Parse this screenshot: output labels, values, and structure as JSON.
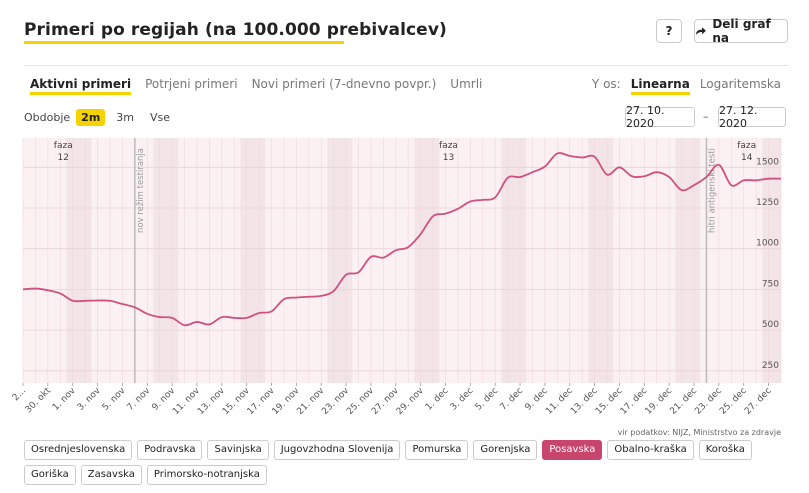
{
  "header": {
    "title": "Primeri po regijah (na 100.000 prebivalcev)",
    "help_label": "?",
    "share_label": "Deli graf na",
    "share_icon": "share-arrow-icon"
  },
  "tabs": [
    {
      "label": "Aktivni primeri",
      "active": true
    },
    {
      "label": "Potrjeni primeri",
      "active": false
    },
    {
      "label": "Novi primeri (7-dnevno povpr.)",
      "active": false
    },
    {
      "label": "Umrli",
      "active": false
    }
  ],
  "yaxis_control": {
    "label": "Y os:",
    "options": [
      "Linearna",
      "Logaritemska"
    ],
    "selected": "Linearna"
  },
  "period": {
    "label": "Obdobje",
    "options": [
      "2m",
      "3m",
      "Vse"
    ],
    "selected": "2m"
  },
  "date_range": {
    "from": "27. 10. 2020",
    "separator": "–",
    "to": "27. 12. 2020"
  },
  "source": "vir podatkov: NIJZ, Ministrstvo za zdravje",
  "regions": [
    {
      "label": "Osrednjeslovenska",
      "active": false
    },
    {
      "label": "Podravska",
      "active": false
    },
    {
      "label": "Savinjska",
      "active": false
    },
    {
      "label": "Jugovzhodna Slovenija",
      "active": false
    },
    {
      "label": "Pomurska",
      "active": false
    },
    {
      "label": "Gorenjska",
      "active": false
    },
    {
      "label": "Posavska",
      "active": true
    },
    {
      "label": "Obalno-kraška",
      "active": false
    },
    {
      "label": "Koroška",
      "active": false
    },
    {
      "label": "Goriška",
      "active": false
    },
    {
      "label": "Zasavska",
      "active": false
    },
    {
      "label": "Primorsko-notranjska",
      "active": false
    }
  ],
  "chart_data": {
    "type": "line",
    "series": [
      {
        "name": "Posavska",
        "color": "#d0507f",
        "x": [
          "2020-10-27",
          "2020-10-28",
          "2020-10-29",
          "2020-10-30",
          "2020-10-31",
          "2020-11-01",
          "2020-11-02",
          "2020-11-03",
          "2020-11-04",
          "2020-11-05",
          "2020-11-06",
          "2020-11-07",
          "2020-11-08",
          "2020-11-09",
          "2020-11-10",
          "2020-11-11",
          "2020-11-12",
          "2020-11-13",
          "2020-11-14",
          "2020-11-15",
          "2020-11-16",
          "2020-11-17",
          "2020-11-18",
          "2020-11-19",
          "2020-11-20",
          "2020-11-21",
          "2020-11-22",
          "2020-11-23",
          "2020-11-24",
          "2020-11-25",
          "2020-11-26",
          "2020-11-27",
          "2020-11-28",
          "2020-11-29",
          "2020-11-30",
          "2020-12-01",
          "2020-12-02",
          "2020-12-03",
          "2020-12-04",
          "2020-12-05",
          "2020-12-06",
          "2020-12-07",
          "2020-12-08",
          "2020-12-09",
          "2020-12-10",
          "2020-12-11",
          "2020-12-12",
          "2020-12-13",
          "2020-12-14",
          "2020-12-15",
          "2020-12-16",
          "2020-12-17",
          "2020-12-18",
          "2020-12-19",
          "2020-12-20",
          "2020-12-21",
          "2020-12-22",
          "2020-12-23",
          "2020-12-24",
          "2020-12-25",
          "2020-12-26",
          "2020-12-27"
        ],
        "values": [
          750,
          755,
          745,
          725,
          680,
          680,
          682,
          680,
          660,
          640,
          600,
          580,
          575,
          530,
          550,
          535,
          580,
          575,
          575,
          605,
          615,
          690,
          700,
          705,
          710,
          740,
          840,
          855,
          950,
          945,
          990,
          1010,
          1090,
          1200,
          1215,
          1245,
          1290,
          1300,
          1315,
          1435,
          1440,
          1470,
          1505,
          1585,
          1570,
          1560,
          1565,
          1455,
          1500,
          1445,
          1445,
          1470,
          1440,
          1360,
          1390,
          1440,
          1515,
          1390,
          1420,
          1420,
          1430,
          1430
        ]
      }
    ],
    "y_ticks": [
      250,
      500,
      750,
      1000,
      1250,
      1500
    ],
    "ylim": [
      175,
      1680
    ],
    "x_tick_labels": [
      "2...",
      "30. okt",
      "1. nov",
      "3. nov",
      "5. nov",
      "7. nov",
      "9. nov",
      "11. nov",
      "13. nov",
      "15. nov",
      "17. nov",
      "19. nov",
      "21. nov",
      "23. nov",
      "25. nov",
      "27. nov",
      "29. nov",
      "1. dec",
      "3. dec",
      "5. dec",
      "7. dec",
      "9. dec",
      "11. dec",
      "13. dec",
      "15. dec",
      "17. dec",
      "19. dec",
      "21. dec",
      "23. dec",
      "25. dec",
      "27. dec"
    ],
    "annotations": {
      "phases": [
        {
          "line1": "faza",
          "line2": "12",
          "date": "2020-10-30"
        },
        {
          "line1": "faza",
          "line2": "13",
          "date": "2020-11-30"
        },
        {
          "line1": "faza",
          "line2": "14",
          "date": "2020-12-24"
        }
      ],
      "events": [
        {
          "label": "nov režim testiranja",
          "date": "2020-11-05"
        },
        {
          "label": "hitri antigenski testi",
          "date": "2020-12-21"
        }
      ]
    },
    "grid": true,
    "scale": "linear"
  }
}
